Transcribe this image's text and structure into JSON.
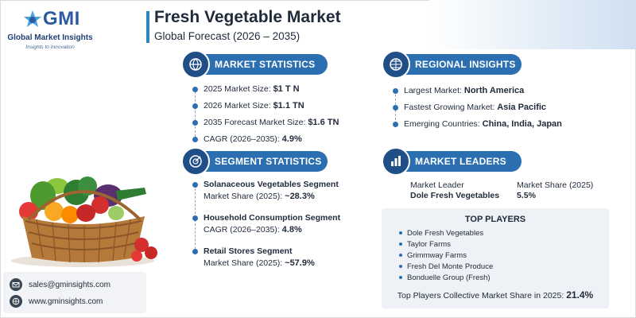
{
  "brand": {
    "logo_text": "GMI",
    "name": "Global Market Insights",
    "tagline": "Insights to Innovation"
  },
  "header": {
    "title": "Fresh Vegetable Market",
    "subtitle": "Global Forecast (2026 – 2035)"
  },
  "market_statistics": {
    "heading": "MARKET STATISTICS",
    "items": [
      {
        "label": "2025 Market Size:",
        "value": "$1 T N"
      },
      {
        "label": "2026 Market Size:",
        "value": "$1.1 TN"
      },
      {
        "label": "2035 Forecast Market Size:",
        "value": "$1.6 TN"
      },
      {
        "label": "CAGR (2026–2035):",
        "value": "4.9%"
      }
    ]
  },
  "regional_insights": {
    "heading": "REGIONAL INSIGHTS",
    "items": [
      {
        "label": "Largest Market:",
        "value": "North America"
      },
      {
        "label": "Fastest Growing Market:",
        "value": "Asia Pacific"
      },
      {
        "label": "Emerging Countries:",
        "value": "China, India, Japan"
      }
    ]
  },
  "segment_statistics": {
    "heading": "SEGMENT STATISTICS",
    "items": [
      {
        "title": "Solanaceous Vegetables Segment",
        "label": "Market Share (2025):",
        "value": "~28.3%"
      },
      {
        "title": "Household Consumption Segment",
        "label": "CAGR (2026–2035):",
        "value": "4.8%"
      },
      {
        "title": "Retail Stores Segment",
        "label": "Market Share (2025):",
        "value": "~57.9%"
      }
    ]
  },
  "market_leaders": {
    "heading": "MARKET LEADERS",
    "leader_label": "Market Leader",
    "leader_value": "Dole Fresh Vegetables",
    "share_label": "Market Share (2025)",
    "share_value": "5.5%"
  },
  "top_players": {
    "heading": "TOP PLAYERS",
    "items": [
      "Dole Fresh Vegetables",
      "Taylor Farms",
      "Grimmway Farms",
      "Fresh Del Monte Produce",
      "Bonduelle Group (Fresh)"
    ],
    "total_label": "Top Players Collective Market Share in 2025:",
    "total_value": "21.4%"
  },
  "contact": {
    "email": "sales@gminsights.com",
    "website": "www.gminsights.com"
  },
  "colors": {
    "accent": "#2b6fb1",
    "accent_dark": "#1f4f86",
    "text": "#1f2a3a"
  }
}
